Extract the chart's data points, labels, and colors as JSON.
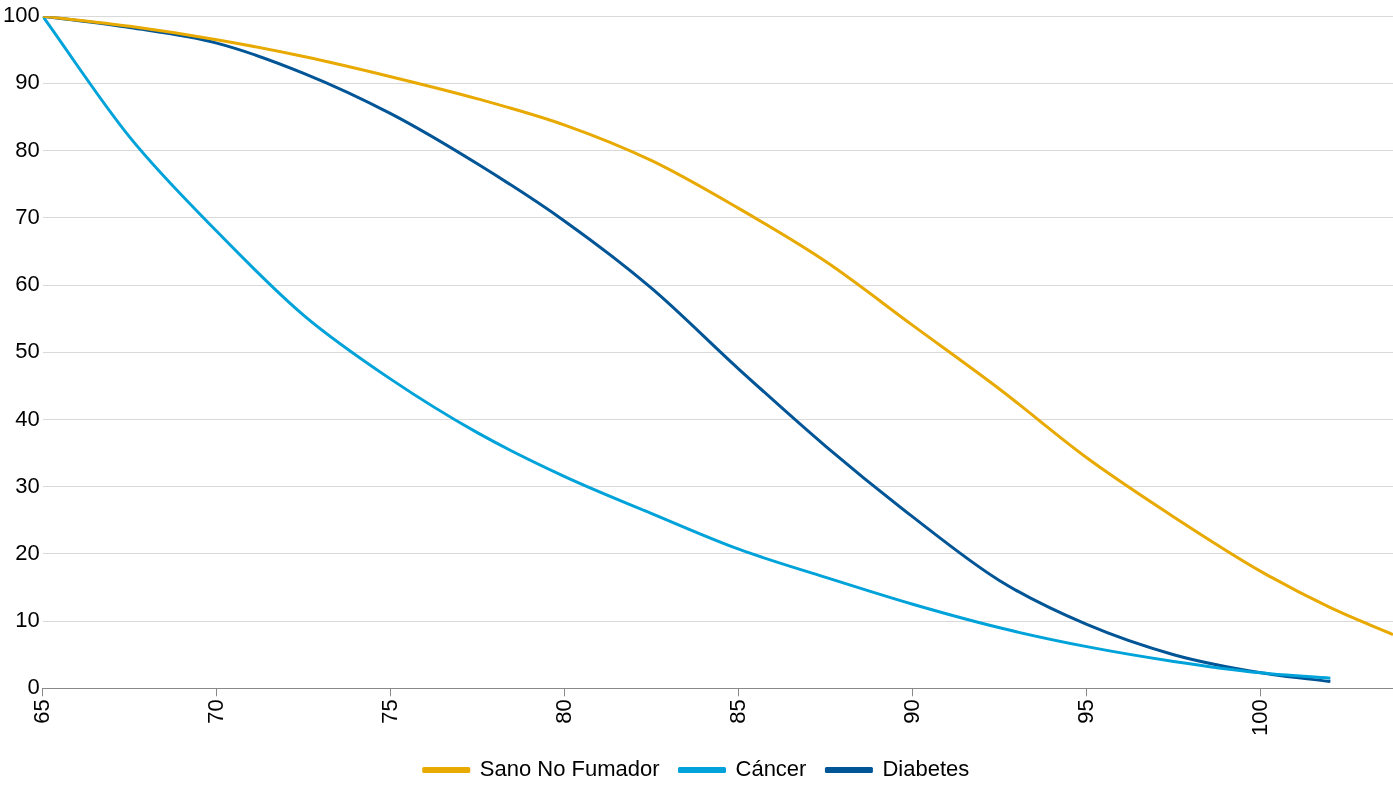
{
  "chart_data": {
    "type": "line",
    "xlim": [
      65,
      103.8
    ],
    "xticks": [
      65,
      70,
      75,
      80,
      85,
      90,
      95,
      100
    ],
    "ylim": [
      0,
      100
    ],
    "yticks": [
      0,
      10,
      20,
      30,
      40,
      50,
      60,
      70,
      80,
      90,
      100
    ],
    "grid": "y",
    "legend": "bottom",
    "marker": "none",
    "line_style": "solid",
    "series": [
      {
        "name": "Sano No Fumador",
        "color": "#e8a900",
        "x": [
          65,
          67.5,
          70,
          72.5,
          75,
          77.5,
          80,
          82.5,
          85,
          87.5,
          90,
          92.5,
          95,
          97.5,
          100,
          102,
          103.8
        ],
        "values": [
          100,
          98.5,
          96.5,
          94,
          91,
          87.7,
          83.8,
          78.5,
          71.4,
          63.5,
          54,
          44.5,
          34.3,
          25.5,
          17.4,
          12,
          8
        ]
      },
      {
        "name": "Cáncer",
        "color": "#00a3d9",
        "x": [
          65,
          67.5,
          70,
          72.5,
          75,
          77.5,
          80,
          82.5,
          85,
          87.5,
          90,
          92.5,
          95,
          97.5,
          100,
          102
        ],
        "values": [
          100,
          82,
          68,
          55.5,
          46,
          38,
          31.5,
          26,
          20.7,
          16.5,
          12.5,
          9,
          6.2,
          4,
          2.3,
          1.5
        ]
      },
      {
        "name": "Diabetes",
        "color": "#005596",
        "x": [
          65,
          67.5,
          70,
          72.5,
          75,
          77.5,
          80,
          82.5,
          85,
          87.5,
          90,
          92.5,
          95,
          97.5,
          100,
          102
        ],
        "values": [
          100,
          98.3,
          96,
          91.5,
          85.5,
          78,
          69.5,
          59.5,
          47.5,
          36,
          25.5,
          16,
          9.5,
          5,
          2.3,
          1
        ]
      }
    ]
  }
}
